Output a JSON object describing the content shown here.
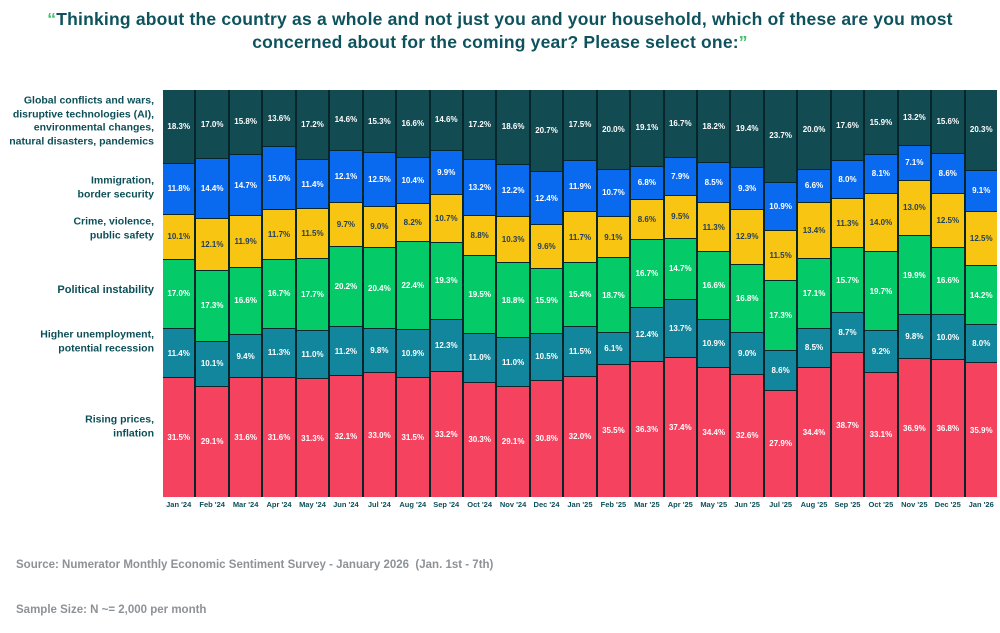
{
  "title": {
    "open_quote": "“",
    "text": "Thinking about the country as a whole and not just you and your household, which of these are you most concerned about for the coming year? Please select one:",
    "close_quote": "”"
  },
  "row_labels": [
    {
      "text": "Global conflicts and wars,\ndisruptive technologies (AI),\nenvironmental changes,\nnatural disasters, pandemics"
    },
    {
      "text": "Immigration,\nborder security"
    },
    {
      "text": "Crime, violence,\npublic safety"
    },
    {
      "text": "Political instability"
    },
    {
      "text": "Higher unemployment,\npotential recession"
    },
    {
      "text": "Rising prices,\ninflation"
    }
  ],
  "footer": {
    "source": "Source: Numerator Monthly Economic Sentiment Survey - January 2026  (Jan. 1st - 7th)",
    "sample": "Sample Size: N ~= 2,000 per month"
  },
  "chart_data": {
    "type": "bar",
    "stacked": true,
    "percent_stacked": true,
    "title": "Thinking about the country as a whole and not just you and your household, which of these are you most concerned about for the coming year? Please select one:",
    "value_suffix": "%",
    "legend_position": "left",
    "grid": false,
    "background_color": "#07262C",
    "categories": [
      "Jan '24",
      "Feb '24",
      "Mar '24",
      "Apr '24",
      "May '24",
      "Jun '24",
      "Jul '24",
      "Aug '24",
      "Sep '24",
      "Oct '24",
      "Nov '24",
      "Dec '24",
      "Jan '25",
      "Feb '25",
      "Mar '25",
      "Apr '25",
      "May '25",
      "Jun '25",
      "Jul '25",
      "Aug '25",
      "Sep '25",
      "Oct '25",
      "Nov '25",
      "Dec '25",
      "Jan '26"
    ],
    "series": [
      {
        "name": "Global conflicts and wars, disruptive technologies (AI), environmental changes, natural disasters, pandemics",
        "color": "#134B53",
        "label_color": "#FFFFFF",
        "values": [
          18.3,
          17.0,
          15.8,
          13.6,
          17.2,
          14.6,
          15.3,
          16.6,
          14.6,
          17.2,
          18.6,
          20.7,
          17.5,
          20.0,
          19.1,
          16.7,
          18.2,
          19.4,
          23.7,
          20.0,
          17.6,
          15.9,
          13.2,
          15.6,
          20.3
        ]
      },
      {
        "name": "Immigration, border security",
        "color": "#0A6AEF",
        "label_color": "#FFFFFF",
        "values": [
          11.8,
          14.4,
          14.7,
          15.0,
          11.4,
          12.1,
          12.5,
          10.4,
          9.9,
          13.2,
          12.2,
          12.4,
          11.9,
          10.7,
          6.8,
          7.9,
          8.5,
          9.3,
          10.9,
          6.6,
          8.0,
          8.1,
          7.1,
          8.6,
          9.1
        ]
      },
      {
        "name": "Crime, violence, public safety",
        "color": "#F9C513",
        "label_color": "#1D3D5C",
        "values": [
          10.1,
          12.1,
          11.9,
          11.7,
          11.5,
          9.7,
          9.0,
          8.2,
          10.7,
          8.8,
          10.3,
          9.6,
          11.7,
          9.1,
          8.6,
          9.5,
          11.3,
          12.9,
          11.5,
          13.4,
          11.3,
          14.0,
          13.0,
          12.5,
          12.5
        ]
      },
      {
        "name": "Political instability",
        "color": "#04CB68",
        "label_color": "#FFFFFF",
        "values": [
          17.0,
          17.3,
          16.6,
          16.7,
          17.7,
          20.2,
          20.4,
          22.4,
          19.3,
          19.5,
          18.8,
          15.9,
          15.4,
          18.7,
          16.7,
          14.7,
          16.6,
          16.8,
          17.3,
          17.1,
          15.7,
          19.7,
          19.9,
          16.6,
          14.2
        ]
      },
      {
        "name": "Higher unemployment, potential recession",
        "color": "#11869C",
        "label_color": "#FFFFFF",
        "values": [
          11.4,
          10.1,
          9.4,
          11.3,
          11.0,
          11.2,
          9.8,
          10.9,
          12.3,
          11.0,
          11.0,
          10.5,
          11.5,
          6.1,
          12.4,
          13.7,
          10.9,
          9.0,
          8.6,
          8.5,
          8.7,
          9.2,
          9.8,
          10.0,
          8.0
        ]
      },
      {
        "name": "Rising prices, inflation",
        "color": "#F4425F",
        "label_color": "#FFFFFF",
        "values": [
          31.5,
          29.1,
          31.6,
          31.6,
          31.3,
          32.1,
          33.0,
          31.5,
          33.2,
          30.3,
          29.1,
          30.8,
          32.0,
          35.5,
          36.3,
          37.4,
          34.4,
          32.6,
          27.9,
          34.4,
          38.7,
          33.1,
          36.9,
          36.8,
          35.9
        ]
      }
    ]
  }
}
